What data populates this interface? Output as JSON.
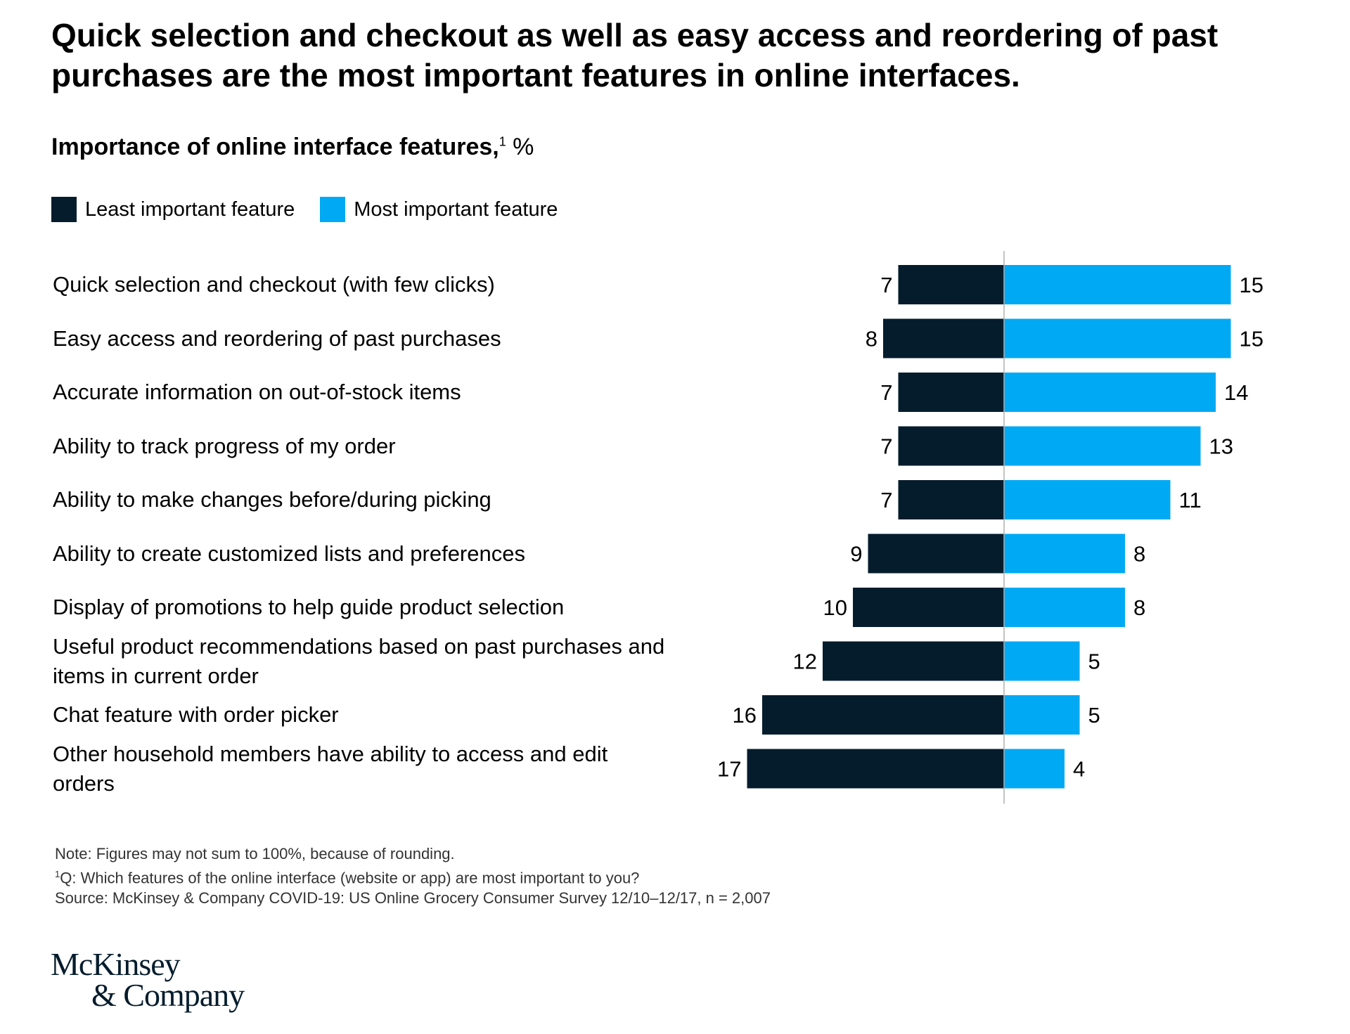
{
  "headline": "Quick selection and checkout as well as easy access and reordering of past purchases are the most important features in online interfaces.",
  "subtitle": {
    "text": "Importance of online interface features,",
    "footnote_mark": "1",
    "unit": "%"
  },
  "legend": [
    {
      "label": "Least important feature",
      "color": "#051c2c"
    },
    {
      "label": "Most important feature",
      "color": "#00a9f4"
    }
  ],
  "chart_data": {
    "type": "bar",
    "orientation": "horizontal-diverging",
    "categories": [
      "Quick selection and checkout (with few clicks)",
      "Easy access and reordering of past purchases",
      "Accurate information on out-of-stock items",
      "Ability to track progress of my order",
      "Ability to make changes before/during picking",
      "Ability to create customized lists and preferences",
      "Display of promotions to help guide product selection",
      "Useful product recommendations based on past purchases and items in current order",
      "Chat feature with order picker",
      "Other household members have ability to access and edit orders"
    ],
    "series": [
      {
        "name": "Least important feature",
        "color": "#051c2c",
        "values": [
          7,
          8,
          7,
          7,
          7,
          9,
          10,
          12,
          16,
          17
        ]
      },
      {
        "name": "Most important feature",
        "color": "#00a9f4",
        "values": [
          15,
          15,
          14,
          13,
          11,
          8,
          8,
          5,
          5,
          4
        ]
      }
    ],
    "unit": "%",
    "grid": false,
    "legend_position": "top-left"
  },
  "notes": {
    "note": "Note: Figures may not sum to 100%, because of rounding.",
    "footnote_mark": "1",
    "question": "Q: Which features of the online interface (website or app) are most important to you?",
    "source": "Source: McKinsey & Company COVID-19: US Online Grocery Consumer Survey 12/10–12/17, n = 2,007"
  },
  "logo": {
    "line1": "McKinsey",
    "line2": "& Company"
  }
}
